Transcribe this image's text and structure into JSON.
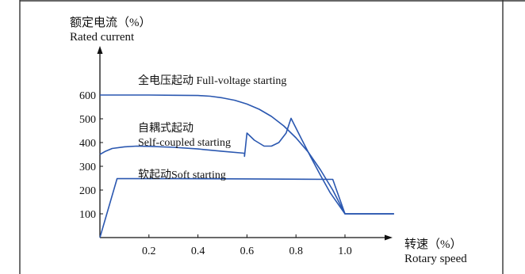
{
  "colors": {
    "curve": "#2a57b0",
    "axis": "#111111",
    "frame": "#333333"
  },
  "chart_data": {
    "type": "line",
    "ylabel_cn": "额定电流（%）",
    "ylabel_en": "Rated current",
    "xlabel_cn": "转速（%）",
    "xlabel_en": "Rotary speed",
    "x_ticks": [
      "0.2",
      "0.4",
      "0.6",
      "0.8",
      "1.0"
    ],
    "y_ticks": [
      "100",
      "200",
      "300",
      "400",
      "500",
      "600"
    ],
    "xlim": [
      0,
      1.2
    ],
    "ylim": [
      0,
      760
    ],
    "series": [
      {
        "name": "全电压起动 Full-voltage starting",
        "points": [
          [
            0,
            600
          ],
          [
            0.1,
            600
          ],
          [
            0.2,
            600
          ],
          [
            0.3,
            599
          ],
          [
            0.4,
            598
          ],
          [
            0.45,
            595
          ],
          [
            0.5,
            588
          ],
          [
            0.55,
            578
          ],
          [
            0.6,
            562
          ],
          [
            0.65,
            540
          ],
          [
            0.7,
            510
          ],
          [
            0.75,
            470
          ],
          [
            0.8,
            420
          ],
          [
            0.85,
            360
          ],
          [
            0.9,
            285
          ],
          [
            0.95,
            200
          ],
          [
            1.0,
            100
          ],
          [
            1.2,
            100
          ]
        ]
      },
      {
        "name": "自耦式起动 Self-coupled starting",
        "points": [
          [
            0,
            350
          ],
          [
            0.02,
            362
          ],
          [
            0.05,
            375
          ],
          [
            0.1,
            382
          ],
          [
            0.15,
            385
          ],
          [
            0.2,
            384
          ],
          [
            0.3,
            380
          ],
          [
            0.4,
            373
          ],
          [
            0.5,
            363
          ],
          [
            0.59,
            355
          ],
          [
            0.59,
            342
          ],
          [
            0.6,
            440
          ],
          [
            0.63,
            410
          ],
          [
            0.67,
            385
          ],
          [
            0.7,
            385
          ],
          [
            0.73,
            400
          ],
          [
            0.76,
            440
          ],
          [
            0.78,
            502
          ],
          [
            0.82,
            420
          ],
          [
            0.86,
            340
          ],
          [
            0.9,
            262
          ],
          [
            0.94,
            188
          ],
          [
            1.0,
            100
          ],
          [
            1.2,
            100
          ]
        ]
      },
      {
        "name": "软起动Soft starting",
        "points": [
          [
            0,
            0
          ],
          [
            0.07,
            248
          ],
          [
            0.3,
            248
          ],
          [
            0.6,
            247
          ],
          [
            0.95,
            245
          ],
          [
            1.0,
            100
          ],
          [
            1.2,
            100
          ]
        ]
      }
    ]
  },
  "annotations": {
    "full_voltage": "全电压起动 Full-voltage starting",
    "self_coupled_cn": "自耦式起动",
    "self_coupled_en": "Self-coupled starting",
    "soft": "软起动Soft starting"
  }
}
